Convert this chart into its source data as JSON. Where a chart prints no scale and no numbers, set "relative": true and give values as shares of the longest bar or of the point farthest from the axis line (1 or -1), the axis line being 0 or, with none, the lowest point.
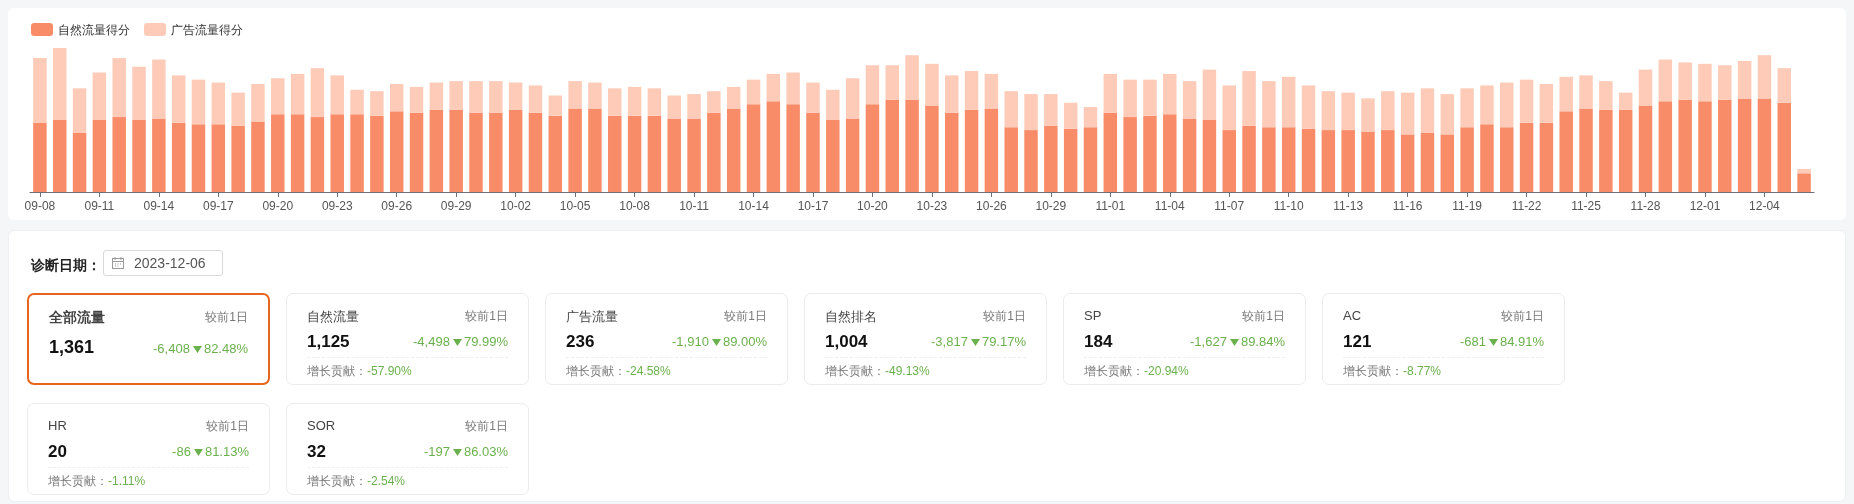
{
  "chart_data": [
    {
      "type": "bar",
      "stacked": true,
      "relative": true,
      "legend": "top left",
      "grid": false,
      "categories": [
        "09-08",
        null,
        null,
        "09-11",
        null,
        null,
        "09-14",
        null,
        null,
        "09-17",
        null,
        null,
        "09-20",
        null,
        null,
        "09-23",
        null,
        null,
        "09-26",
        null,
        null,
        "09-29",
        null,
        null,
        "10-02",
        null,
        null,
        "10-05",
        null,
        null,
        "10-08",
        null,
        null,
        "10-11",
        null,
        null,
        "10-14",
        null,
        null,
        "10-17",
        null,
        null,
        "10-20",
        null,
        null,
        "10-23",
        null,
        null,
        "10-26",
        null,
        null,
        "10-29",
        null,
        null,
        "11-01",
        null,
        null,
        "11-04",
        null,
        null,
        "11-07",
        null,
        null,
        "11-10",
        null,
        null,
        "11-13",
        null,
        null,
        "11-16",
        null,
        null,
        "11-19",
        null,
        null,
        "11-22",
        null,
        null,
        "11-25",
        null,
        null,
        "11-28",
        null,
        null,
        "12-01",
        null,
        null,
        "12-04",
        null,
        null
      ],
      "series": [
        {
          "name": "自然流量得分",
          "color": "#f98c68",
          "values": [
            0.48,
            0.5,
            0.41,
            0.5,
            0.52,
            0.5,
            0.51,
            0.48,
            0.47,
            0.47,
            0.46,
            0.49,
            0.54,
            0.54,
            0.52,
            0.54,
            0.54,
            0.53,
            0.56,
            0.55,
            0.57,
            0.57,
            0.55,
            0.55,
            0.57,
            0.55,
            0.53,
            0.58,
            0.58,
            0.53,
            0.53,
            0.53,
            0.51,
            0.51,
            0.55,
            0.58,
            0.61,
            0.63,
            0.61,
            0.55,
            0.5,
            0.51,
            0.61,
            0.64,
            0.64,
            0.6,
            0.55,
            0.57,
            0.58,
            0.45,
            0.43,
            0.46,
            0.44,
            0.45,
            0.55,
            0.52,
            0.53,
            0.54,
            0.51,
            0.5,
            0.43,
            0.46,
            0.45,
            0.45,
            0.44,
            0.43,
            0.43,
            0.42,
            0.43,
            0.4,
            0.41,
            0.4,
            0.45,
            0.47,
            0.45,
            0.48,
            0.48,
            0.56,
            0.58,
            0.57,
            0.57,
            0.6,
            0.63,
            0.64,
            0.63,
            0.64,
            0.65,
            0.65,
            0.62,
            0.13
          ]
        },
        {
          "name": "广告流量得分",
          "color": "#fdcbb8",
          "values": [
            0.45,
            0.5,
            0.31,
            0.33,
            0.41,
            0.37,
            0.41,
            0.33,
            0.31,
            0.29,
            0.23,
            0.26,
            0.25,
            0.28,
            0.34,
            0.27,
            0.17,
            0.17,
            0.19,
            0.18,
            0.19,
            0.2,
            0.22,
            0.22,
            0.19,
            0.19,
            0.14,
            0.19,
            0.18,
            0.19,
            0.2,
            0.19,
            0.16,
            0.17,
            0.15,
            0.15,
            0.17,
            0.19,
            0.22,
            0.21,
            0.21,
            0.28,
            0.27,
            0.24,
            0.31,
            0.29,
            0.26,
            0.27,
            0.24,
            0.25,
            0.25,
            0.22,
            0.18,
            0.14,
            0.27,
            0.26,
            0.25,
            0.28,
            0.26,
            0.35,
            0.31,
            0.38,
            0.32,
            0.35,
            0.3,
            0.27,
            0.26,
            0.23,
            0.27,
            0.29,
            0.31,
            0.28,
            0.27,
            0.27,
            0.31,
            0.3,
            0.27,
            0.24,
            0.23,
            0.2,
            0.12,
            0.25,
            0.29,
            0.26,
            0.26,
            0.24,
            0.26,
            0.3,
            0.24,
            0.03
          ]
        }
      ]
    },
    {
      "type": "other",
      "title": "诊断日期：",
      "categories": [
        "全部流量",
        "自然流量",
        "广告流量",
        "自然排名",
        "SP",
        "AC",
        "HR",
        "SOR"
      ],
      "value_labels": [
        "1,361",
        "1,125",
        "236",
        "1,004",
        "184",
        "121",
        "20",
        "32"
      ],
      "annotations": [
        "2023-12-06",
        "较前1日",
        "-6,408",
        "82.48%",
        "较前1日",
        "-4,498",
        "79.99%",
        "较前1日",
        "-1,910",
        "89.00%",
        "较前1日",
        "-3,817",
        "79.17%",
        "较前1日",
        "-1,627",
        "89.84%",
        "较前1日",
        "-681",
        "84.91%",
        "较前1日",
        "-86",
        "81.13%",
        "较前1日",
        "-197",
        "86.03%",
        "增长贡献：-57.90%",
        "增长贡献：-24.58%",
        "增长贡献：-49.13%",
        "增长贡献：-20.94%",
        "增长贡献：-8.77%",
        "增长贡献：-1.11%",
        "增长贡献：-2.54%"
      ]
    }
  ]
}
